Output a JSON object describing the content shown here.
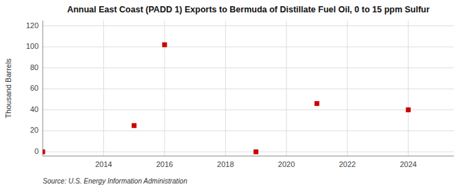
{
  "chart_data": {
    "type": "scatter",
    "title": "Annual East Coast (PADD 1) Exports to Bermuda of Distillate Fuel Oil, 0 to 15 ppm Sulfur",
    "ylabel": "Thousand Barrels",
    "annotations": [
      "Source: U.S. Energy Information Administration"
    ],
    "x": [
      2012,
      2015,
      2016,
      2019,
      2021,
      2024
    ],
    "values": [
      0,
      25,
      102,
      0,
      46,
      40
    ],
    "color": "#cc0000",
    "marker": "square",
    "xlim": [
      2012,
      2025.5
    ],
    "ylim": [
      -4,
      125
    ],
    "xticks": [
      2014,
      2016,
      2018,
      2020,
      2022,
      2024
    ],
    "yticks": [
      0,
      20,
      40,
      60,
      80,
      100,
      120
    ],
    "grid": true
  }
}
